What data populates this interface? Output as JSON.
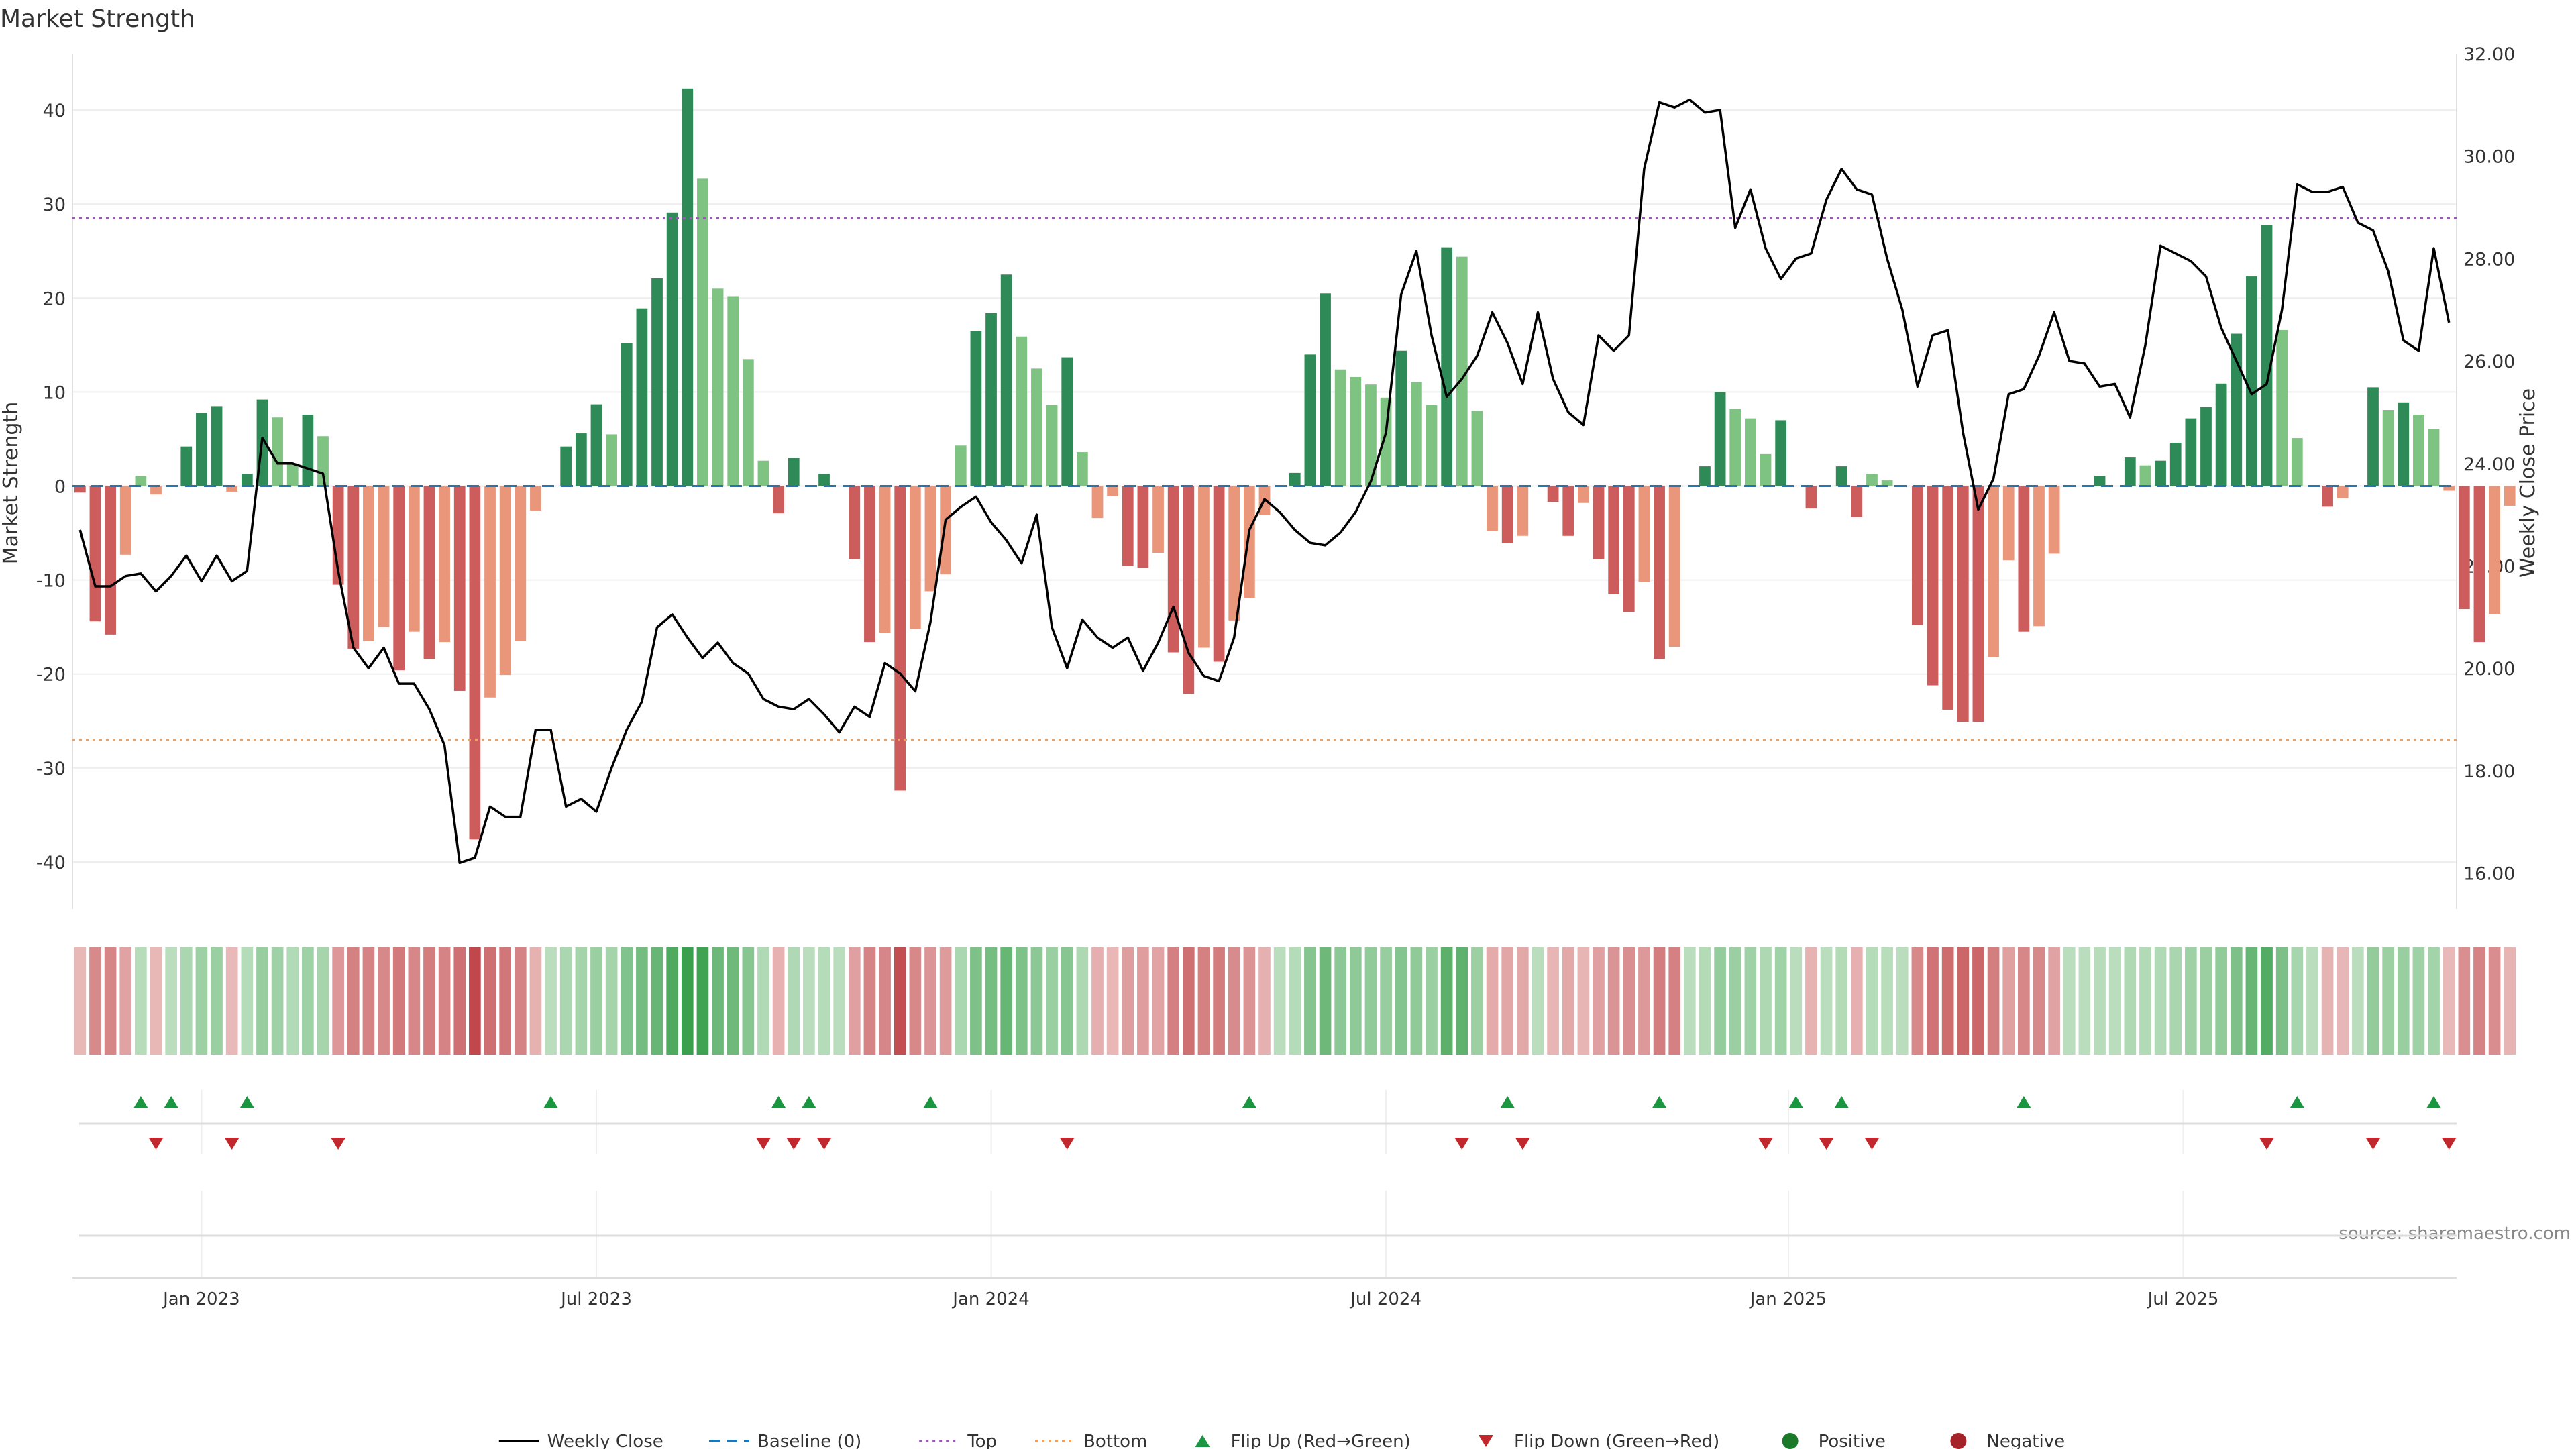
{
  "chart_data": {
    "type": "bar",
    "title": "Market Strength",
    "ylabel": "Market Strength",
    "y2label": "Weekly Close Price",
    "ylim": [
      -45,
      46
    ],
    "y2lim": [
      15.3,
      32.0
    ],
    "yticks": [
      -40,
      -30,
      -20,
      -10,
      0,
      10,
      20,
      30,
      40
    ],
    "y2ticks": [
      "16.00",
      "18.00",
      "20.00",
      "22.00",
      "24.00",
      "26.00",
      "28.00",
      "30.00",
      "32.00"
    ],
    "xlim": [
      0,
      157
    ],
    "xticks": [
      {
        "label": "Jan 2023",
        "x": 8.5
      },
      {
        "label": "Jul 2023",
        "x": 34.5
      },
      {
        "label": "Jan 2024",
        "x": 60.5
      },
      {
        "label": "Jul 2024",
        "x": 86.5
      },
      {
        "label": "Jan 2025",
        "x": 113
      },
      {
        "label": "Jul 2025",
        "x": 139
      }
    ],
    "top_level": 28.5,
    "bottom_level": -27,
    "source": "source: sharemaestro.com",
    "strength": [
      -0.7,
      -14.4,
      -15.8,
      -7.3,
      1.1,
      -0.9,
      0,
      4.2,
      7.8,
      8.5,
      -0.6,
      1.3,
      9.2,
      7.3,
      2.4,
      7.6,
      5.3,
      -10.5,
      -17.3,
      -16.5,
      -15,
      -19.6,
      -15.5,
      -18.4,
      -16.6,
      -21.8,
      -37.6,
      -22.5,
      -20.1,
      -16.5,
      -2.6,
      0,
      4.2,
      5.6,
      8.7,
      5.5,
      15.2,
      18.9,
      22.1,
      29.1,
      42.3,
      32.7,
      21,
      20.2,
      13.5,
      2.7,
      -2.9,
      3,
      0,
      1.3,
      0,
      -7.8,
      -16.6,
      -15.6,
      -32.4,
      -15.2,
      -11.2,
      -9.4,
      4.3,
      16.5,
      18.4,
      22.5,
      15.9,
      12.5,
      8.6,
      13.7,
      3.6,
      -3.4,
      -1.1,
      -8.5,
      -8.7,
      -7.1,
      -17.7,
      -22.1,
      -17.2,
      -18.7,
      -14.3,
      -11.9,
      -3.1,
      0,
      1.4,
      14,
      20.5,
      12.4,
      11.6,
      10.8,
      9.4,
      14.4,
      11.1,
      8.6,
      25.4,
      24.4,
      8,
      -4.8,
      -6.1,
      -5.3,
      0,
      -1.7,
      -5.3,
      -1.8,
      -7.8,
      -11.5,
      -13.4,
      -10.2,
      -18.4,
      -17.1,
      0,
      2.1,
      10,
      8.2,
      7.2,
      3.4,
      7,
      0,
      -2.4,
      0,
      2.1,
      -3.3,
      1.3,
      0.6,
      0,
      -14.8,
      -21.2,
      -23.8,
      -25.1,
      -25.1,
      -18.2,
      -7.9,
      -15.5,
      -14.9,
      -7.2,
      0,
      0,
      1.1,
      0,
      3.1,
      2.2,
      2.7,
      4.6,
      7.2,
      8.4,
      10.9,
      16.2,
      22.3,
      27.8,
      16.6,
      5.1,
      0,
      -2.2,
      -1.3,
      0,
      10.5,
      8.1,
      8.9,
      7.6,
      6.1,
      -0.5,
      -13.1,
      -16.6,
      -13.6,
      -2.1
    ],
    "price": [
      22.7,
      21.6,
      21.6,
      21.8,
      21.85,
      21.5,
      21.8,
      22.2,
      21.7,
      22.2,
      21.7,
      21.9,
      24.5,
      24.0,
      24.0,
      23.9,
      23.8,
      21.9,
      20.4,
      20.0,
      20.4,
      19.7,
      19.7,
      19.2,
      18.5,
      16.2,
      16.3,
      17.3,
      17.1,
      17.1,
      18.8,
      18.8,
      17.3,
      17.45,
      17.2,
      18.05,
      18.8,
      19.35,
      20.8,
      21.05,
      20.6,
      20.2,
      20.5,
      20.1,
      19.9,
      19.4,
      19.25,
      19.2,
      19.4,
      19.1,
      18.75,
      19.25,
      19.05,
      20.1,
      19.9,
      19.55,
      20.9,
      22.9,
      23.15,
      23.35,
      22.85,
      22.5,
      22.05,
      23.0,
      20.8,
      20.0,
      20.95,
      20.6,
      20.4,
      20.6,
      19.95,
      20.5,
      21.2,
      20.3,
      19.85,
      19.75,
      20.6,
      22.7,
      23.3,
      23.05,
      22.7,
      22.45,
      22.4,
      22.65,
      23.05,
      23.65,
      24.6,
      27.3,
      28.15,
      26.5,
      25.3,
      25.65,
      26.1,
      26.95,
      26.35,
      25.55,
      26.95,
      25.65,
      25.0,
      24.75,
      26.5,
      26.2,
      26.5,
      29.75,
      31.05,
      30.95,
      31.1,
      30.85,
      30.9,
      28.6,
      29.35,
      28.2,
      27.6,
      28.0,
      28.1,
      29.15,
      29.75,
      29.35,
      29.25,
      28.0,
      27.0,
      25.5,
      26.5,
      26.6,
      24.6,
      23.1,
      23.7,
      25.35,
      25.45,
      26.1,
      26.95,
      26.0,
      25.95,
      25.5,
      25.55,
      24.9,
      26.3,
      28.25,
      28.1,
      27.95,
      27.65,
      26.65,
      26.0,
      25.35,
      25.55,
      27.0,
      29.45,
      29.3,
      29.3,
      29.4,
      28.7,
      28.55,
      27.75,
      26.4,
      26.2,
      28.2,
      26.75
    ],
    "flips_up": [
      4,
      6,
      11,
      31,
      46,
      48,
      56,
      77,
      94,
      104,
      113,
      116,
      128,
      146,
      155
    ],
    "flips_down": [
      5,
      10,
      17,
      45,
      47,
      49,
      65,
      91,
      95,
      111,
      115,
      118,
      144,
      151,
      156
    ],
    "legend": [
      {
        "label": "Weekly Close",
        "kind": "line",
        "color": "#000000"
      },
      {
        "label": "Baseline (0)",
        "kind": "dash",
        "color": "#1f77b4"
      },
      {
        "label": "Top",
        "kind": "dot",
        "color": "#9b59b6"
      },
      {
        "label": "Bottom",
        "kind": "dot",
        "color": "#f0a060"
      },
      {
        "label": "Flip Up (Red→Green)",
        "kind": "tri-up",
        "color": "#1a9641"
      },
      {
        "label": "Flip Down (Green→Red)",
        "kind": "tri-down",
        "color": "#c0282d"
      },
      {
        "label": "Positive",
        "kind": "circle",
        "color": "#1a7a2a"
      },
      {
        "label": "Negative",
        "kind": "circle",
        "color": "#a52228"
      }
    ]
  }
}
